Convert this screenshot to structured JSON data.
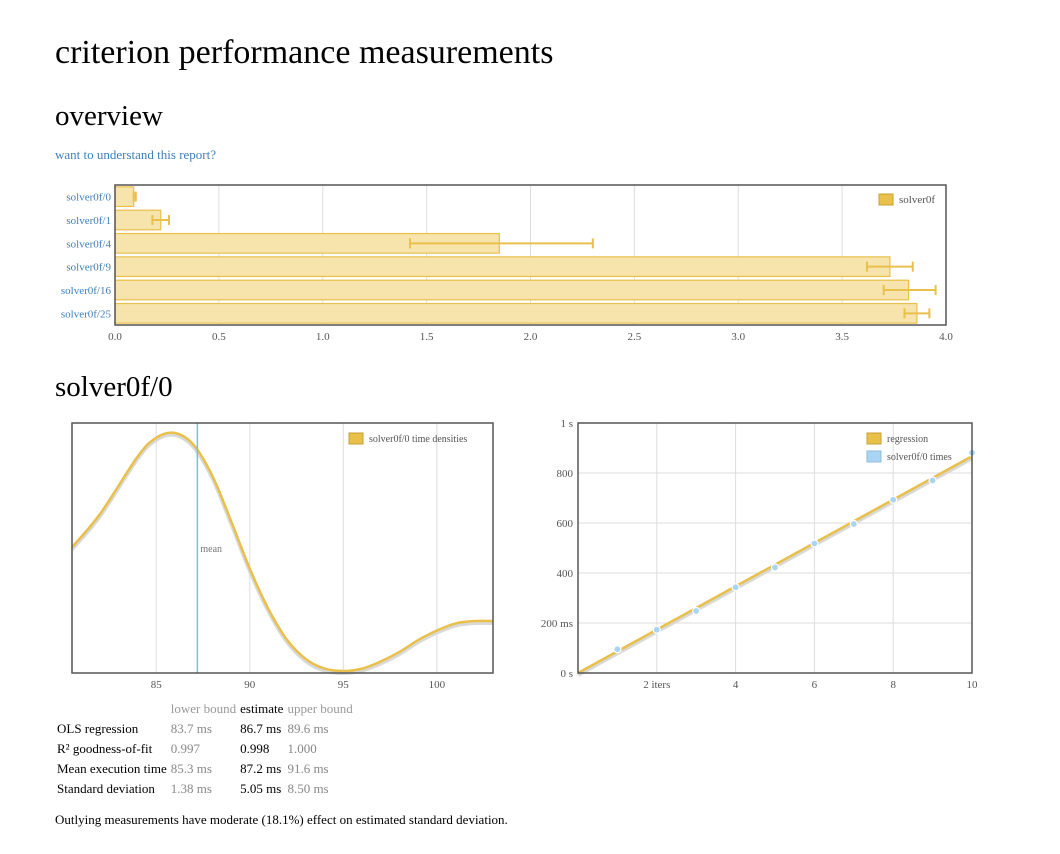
{
  "page": {
    "title": "criterion performance measurements",
    "overview_heading": "overview",
    "help_link": "want to understand this report?",
    "bench_heading": "solver0f/0",
    "outlier_note": "Outlying measurements have moderate (18.1%) effect on estimated standard deviation."
  },
  "colors": {
    "bar": "#e8c04a",
    "bar_fill": "#f7e4ad",
    "mean_line": "#62c8e0",
    "point": "#a9d4f2",
    "link": "#3d7fba"
  },
  "chart_data": [
    {
      "type": "bar",
      "orientation": "horizontal",
      "categories": [
        "solver0f/0",
        "solver0f/1",
        "solver0f/4",
        "solver0f/9",
        "solver0f/16",
        "solver0f/25"
      ],
      "series": [
        {
          "name": "solver0f",
          "values": [
            0.09,
            0.22,
            1.85,
            3.73,
            3.82,
            3.86
          ]
        }
      ],
      "error_bars": [
        [
          0.09,
          0.1
        ],
        [
          0.18,
          0.26
        ],
        [
          1.42,
          2.3
        ],
        [
          3.62,
          3.84
        ],
        [
          3.7,
          3.95
        ],
        [
          3.8,
          3.92
        ]
      ],
      "xlim": [
        0,
        4
      ],
      "xticks": [
        "0.0",
        "0.5",
        "1.0",
        "1.5",
        "2.0",
        "2.5",
        "3.0",
        "3.5",
        "4.0"
      ],
      "grid": true,
      "legend": "top-right"
    },
    {
      "type": "line",
      "series": [
        {
          "name": "solver0f/0 time densities"
        }
      ],
      "x": [
        80.5,
        82,
        84,
        85,
        86,
        87,
        88,
        89,
        90,
        91,
        92,
        93,
        94,
        95,
        96,
        97,
        98,
        99,
        100,
        101,
        102,
        103
      ],
      "y": [
        0.52,
        0.66,
        0.9,
        0.98,
        1.0,
        0.95,
        0.82,
        0.63,
        0.43,
        0.26,
        0.13,
        0.05,
        0.01,
        0.0,
        0.01,
        0.04,
        0.08,
        0.13,
        0.17,
        0.2,
        0.21,
        0.21
      ],
      "xlim": [
        80.5,
        103
      ],
      "xticks": [
        "85",
        "90",
        "95",
        "100"
      ],
      "mean": 87.2,
      "mean_label": "mean",
      "legend": "top-right"
    },
    {
      "type": "scatter",
      "series": [
        {
          "name": "regression",
          "x": [
            0,
            10
          ],
          "y": [
            0,
            867
          ]
        },
        {
          "name": "solver0f/0 times",
          "x": [
            1,
            2,
            3,
            4,
            5,
            6,
            7,
            8,
            9,
            10
          ],
          "y": [
            95,
            173,
            248,
            343,
            422,
            518,
            596,
            693,
            770,
            881
          ]
        }
      ],
      "xlim": [
        0,
        10
      ],
      "ylim": [
        0,
        1000
      ],
      "xticks": [
        "2 iters",
        "4",
        "6",
        "8",
        "10"
      ],
      "yticks": [
        "0 s",
        "200 ms",
        "400",
        "600",
        "800",
        "1 s"
      ],
      "legend": "top-right"
    }
  ],
  "stats": {
    "headers": [
      "",
      "lower bound",
      "estimate",
      "upper bound"
    ],
    "rows": [
      [
        "OLS regression",
        "83.7 ms",
        "86.7 ms",
        "89.6 ms"
      ],
      [
        "R² goodness-of-fit",
        "0.997",
        "0.998",
        "1.000"
      ],
      [
        "Mean execution time",
        "85.3 ms",
        "87.2 ms",
        "91.6 ms"
      ],
      [
        "Standard deviation",
        "1.38 ms",
        "5.05 ms",
        "8.50 ms"
      ]
    ]
  }
}
